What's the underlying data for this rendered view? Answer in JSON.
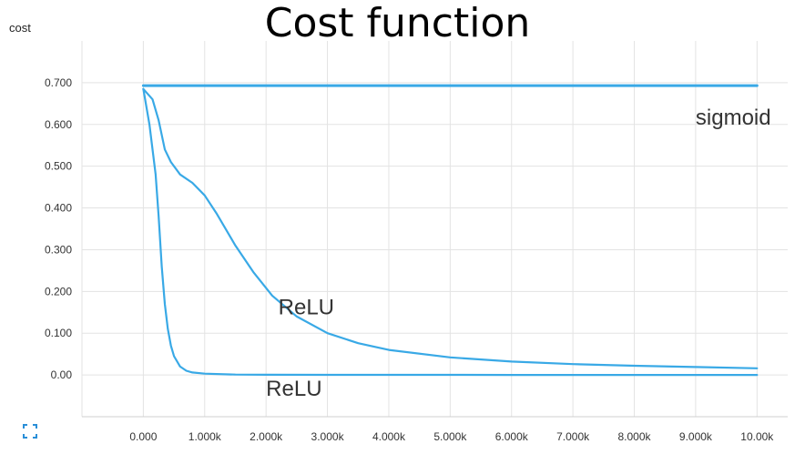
{
  "chart_data": {
    "type": "line",
    "title": "Cost function",
    "ylabel": "cost",
    "xlabel": "",
    "xlim": [
      -1000,
      10500
    ],
    "ylim": [
      -0.1,
      0.8
    ],
    "x_ticks": [
      0,
      1000,
      2000,
      3000,
      4000,
      5000,
      6000,
      7000,
      8000,
      9000,
      10000
    ],
    "x_tick_labels": [
      "0.000",
      "1.000k",
      "2.000k",
      "3.000k",
      "4.000k",
      "5.000k",
      "6.000k",
      "7.000k",
      "8.000k",
      "9.000k",
      "10.00k"
    ],
    "y_ticks": [
      0,
      0.1,
      0.2,
      0.3,
      0.4,
      0.5,
      0.6,
      0.7
    ],
    "y_tick_labels": [
      "0.00",
      "0.100",
      "0.200",
      "0.300",
      "0.400",
      "0.500",
      "0.600",
      "0.700"
    ],
    "grid": true,
    "line_color": "#39a9e6",
    "series": [
      {
        "name": "sigmoid",
        "x": [
          0,
          1000,
          2000,
          3000,
          4000,
          5000,
          6000,
          7000,
          8000,
          9000,
          10000
        ],
        "y": [
          0.693,
          0.693,
          0.693,
          0.693,
          0.693,
          0.693,
          0.693,
          0.693,
          0.693,
          0.693,
          0.693
        ]
      },
      {
        "name": "ReLU",
        "x": [
          0,
          150,
          250,
          350,
          450,
          600,
          800,
          1000,
          1200,
          1500,
          1800,
          2100,
          2500,
          3000,
          3500,
          4000,
          5000,
          6000,
          7000,
          8000,
          9000,
          10000
        ],
        "y": [
          0.685,
          0.66,
          0.61,
          0.54,
          0.51,
          0.48,
          0.46,
          0.43,
          0.385,
          0.31,
          0.245,
          0.19,
          0.14,
          0.1,
          0.076,
          0.06,
          0.042,
          0.032,
          0.026,
          0.022,
          0.019,
          0.016
        ]
      },
      {
        "name": "ReLU",
        "x": [
          0,
          100,
          200,
          250,
          300,
          350,
          400,
          450,
          500,
          600,
          700,
          800,
          1000,
          1500,
          2000,
          3000,
          4000,
          5000,
          6000,
          7000,
          8000,
          9000,
          10000
        ],
        "y": [
          0.685,
          0.6,
          0.48,
          0.38,
          0.26,
          0.17,
          0.11,
          0.07,
          0.045,
          0.02,
          0.01,
          0.006,
          0.003,
          0.001,
          0.0005,
          0.0003,
          0.0002,
          0.0002,
          0.0001,
          0.0001,
          0.0001,
          0.0001,
          0.0001
        ]
      }
    ],
    "annotations": [
      {
        "text": "sigmoid",
        "x": 9000,
        "y": 0.6
      },
      {
        "text": "ReLU",
        "x": 2200,
        "y": 0.145
      },
      {
        "text": "ReLU",
        "x": 2000,
        "y": -0.05
      }
    ]
  }
}
